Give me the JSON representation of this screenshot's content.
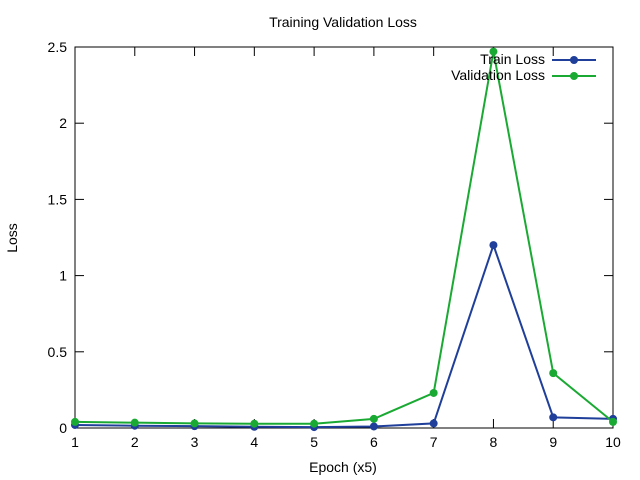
{
  "chart_data": {
    "type": "line",
    "title": "Training  Validation Loss",
    "xlabel": "Epoch (x5)",
    "ylabel": "Loss",
    "x": [
      1,
      2,
      3,
      4,
      5,
      6,
      7,
      8,
      9,
      10
    ],
    "xlim": [
      1,
      10
    ],
    "ylim": [
      0,
      2.5
    ],
    "xticks": [
      "1",
      "2",
      "3",
      "4",
      "5",
      "6",
      "7",
      "8",
      "9",
      "10"
    ],
    "yticks": [
      "0",
      "0.5",
      "1",
      "1.5",
      "2",
      "2.5"
    ],
    "ytick_values": [
      0,
      0.5,
      1,
      1.5,
      2,
      2.5
    ],
    "grid": false,
    "legend_position": "top-right",
    "series": [
      {
        "name": "Train Loss",
        "color": "#1f3f9a",
        "values": [
          0.02,
          0.015,
          0.012,
          0.008,
          0.006,
          0.01,
          0.03,
          1.2,
          0.07,
          0.06
        ]
      },
      {
        "name": "Validation Loss",
        "color": "#1aaa33",
        "values": [
          0.04,
          0.035,
          0.03,
          0.028,
          0.028,
          0.06,
          0.23,
          2.47,
          0.36,
          0.04
        ]
      }
    ]
  }
}
